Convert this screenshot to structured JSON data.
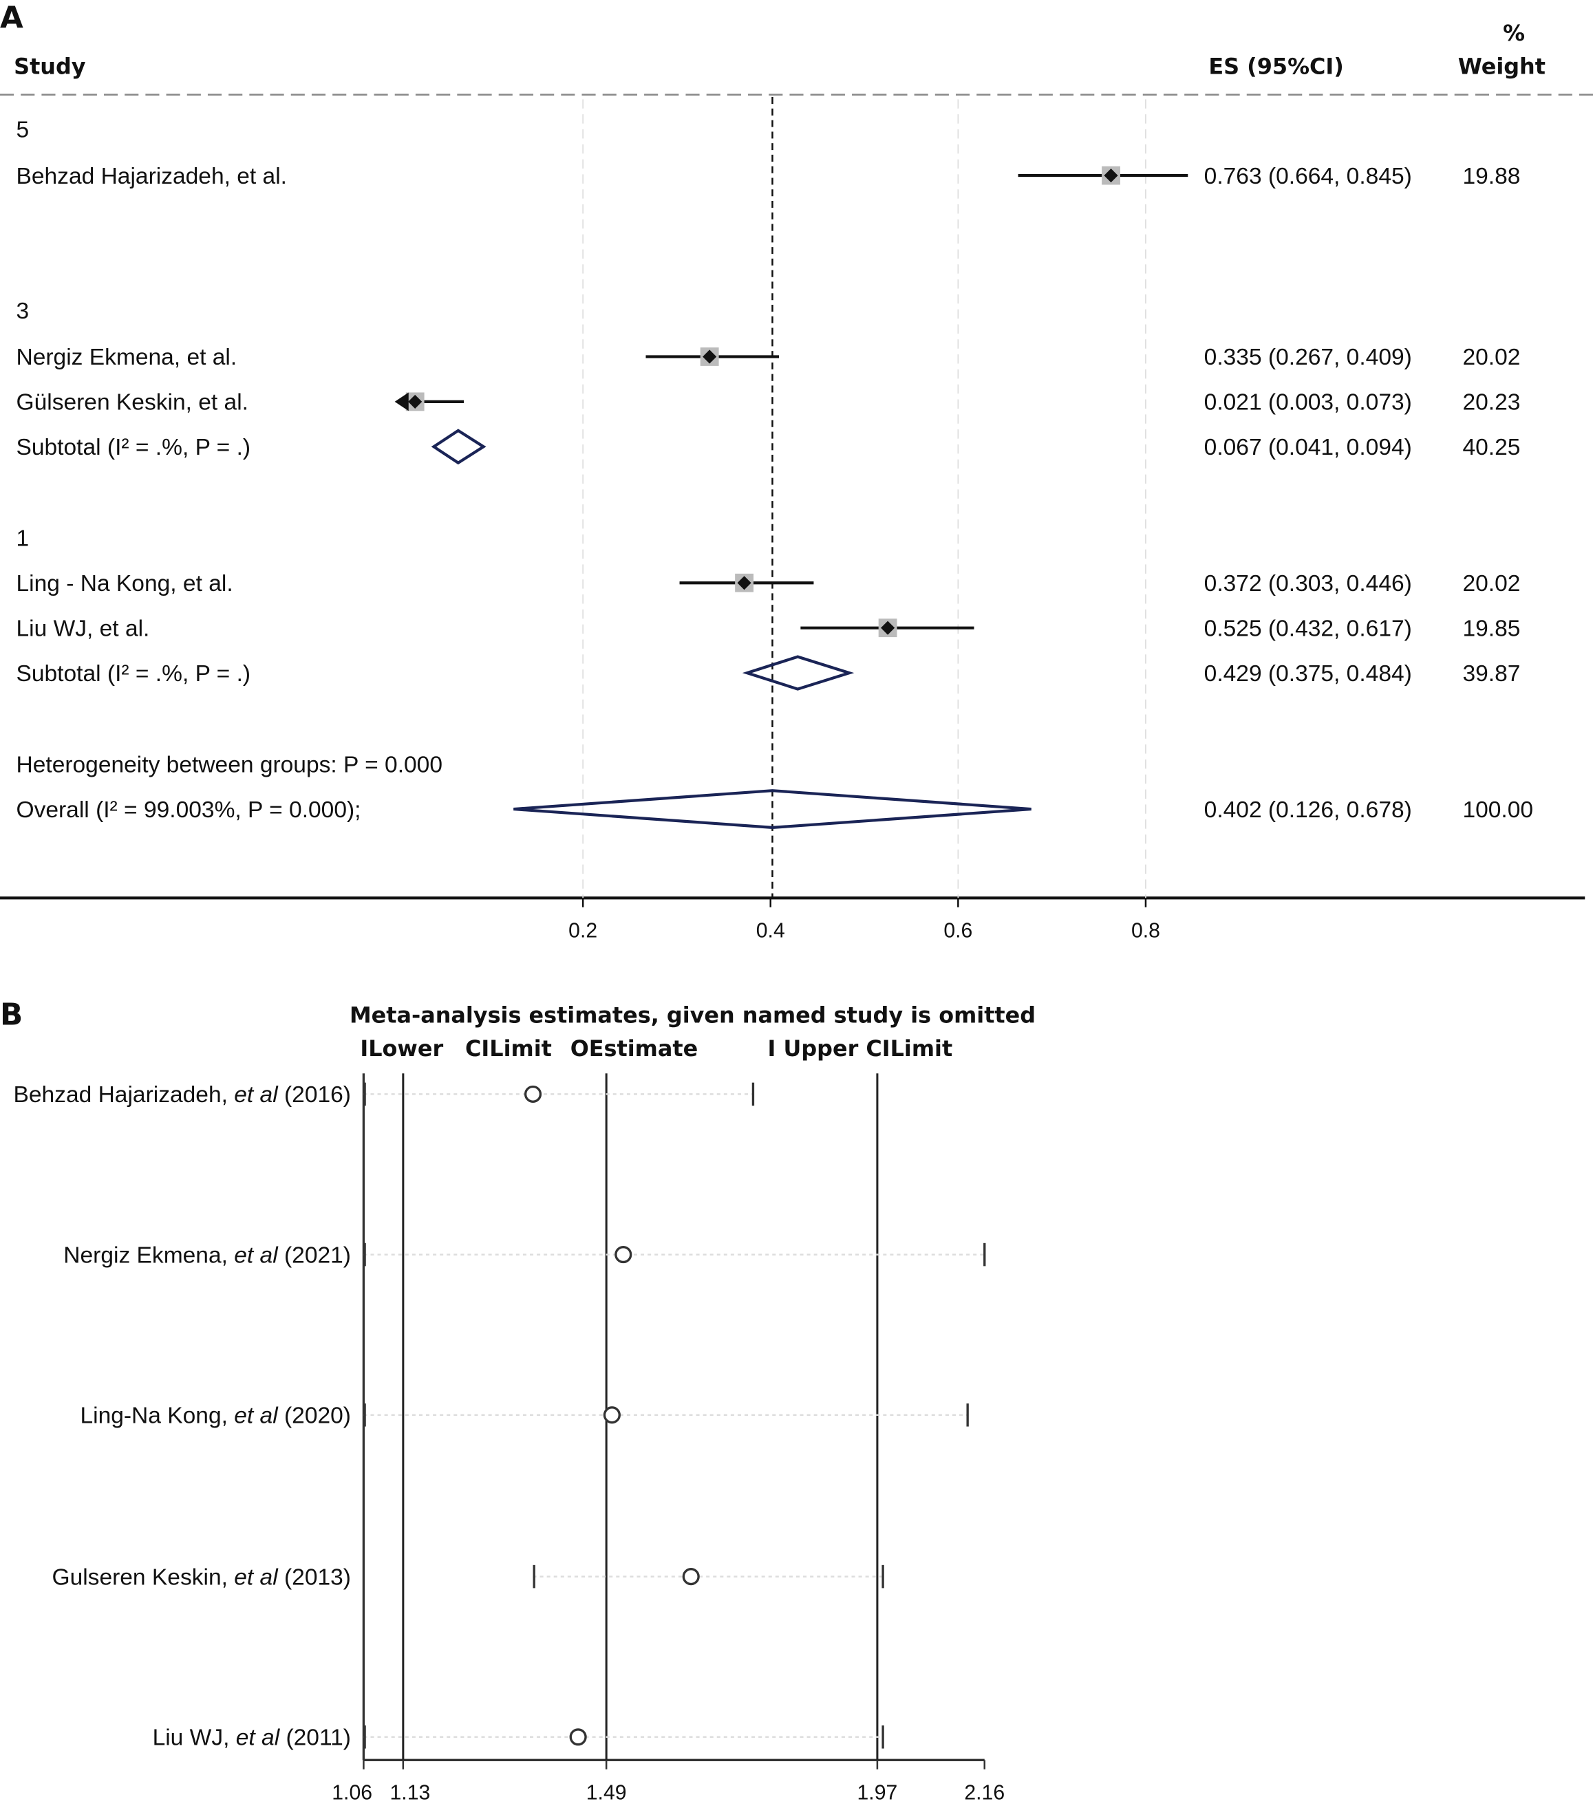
{
  "chart_data": [
    {
      "type": "forest",
      "panel_label": "A",
      "headers": {
        "study": "Study",
        "es": "ES (95%CI)",
        "weight_top": "%",
        "weight": "Weight"
      },
      "xlim": [
        0,
        0.95
      ],
      "xticks": [
        0.2,
        0.4,
        0.6,
        0.8
      ],
      "xtick_labels": [
        "0.2",
        "0.4",
        "0.6",
        "0.8"
      ],
      "reference_line": 0.402,
      "rows": [
        {
          "kind": "group",
          "label": "5"
        },
        {
          "kind": "study",
          "label": "Behzad Hajarizadeh, et al.",
          "es": 0.763,
          "lo": 0.664,
          "hi": 0.845,
          "es_text": "0.763 (0.664, 0.845)",
          "weight": "19.88"
        },
        {
          "kind": "blank"
        },
        {
          "kind": "blank"
        },
        {
          "kind": "group",
          "label": "3"
        },
        {
          "kind": "study",
          "label": "Nergiz Ekmena, et al.",
          "es": 0.335,
          "lo": 0.267,
          "hi": 0.409,
          "es_text": "0.335 (0.267, 0.409)",
          "weight": "20.02"
        },
        {
          "kind": "study",
          "label": "Gülseren Keskin, et al.",
          "es": 0.021,
          "lo": 0.003,
          "hi": 0.073,
          "es_text": "0.021 (0.003, 0.073)",
          "weight": "20.23",
          "clipped_left": true
        },
        {
          "kind": "subtotal",
          "label": "Subtotal  (I² = .%, P = .)",
          "es": 0.067,
          "lo": 0.041,
          "hi": 0.094,
          "es_text": "0.067 (0.041, 0.094)",
          "weight": "40.25"
        },
        {
          "kind": "blank"
        },
        {
          "kind": "group",
          "label": "1"
        },
        {
          "kind": "study",
          "label": "Ling - Na Kong, et al.",
          "es": 0.372,
          "lo": 0.303,
          "hi": 0.446,
          "es_text": "0.372 (0.303, 0.446)",
          "weight": "20.02"
        },
        {
          "kind": "study",
          "label": "Liu WJ, et al.",
          "es": 0.525,
          "lo": 0.432,
          "hi": 0.617,
          "es_text": "0.525 (0.432, 0.617)",
          "weight": "19.85"
        },
        {
          "kind": "subtotal",
          "label": "Subtotal  (I² = .%, P = .)",
          "es": 0.429,
          "lo": 0.375,
          "hi": 0.484,
          "es_text": "0.429 (0.375, 0.484)",
          "weight": "39.87"
        },
        {
          "kind": "blank"
        },
        {
          "kind": "text",
          "label": "Heterogeneity between groups: P = 0.000"
        },
        {
          "kind": "overall",
          "label": "Overall  (I² = 99.003%, P = 0.000);",
          "es": 0.402,
          "lo": 0.126,
          "hi": 0.678,
          "es_text": "0.402 (0.126, 0.678)",
          "weight": "100.00"
        }
      ],
      "colors": {
        "diamond": "#1a2456",
        "box": "#bbbbbb",
        "grid": "#dddddd"
      }
    },
    {
      "type": "sensitivity",
      "panel_label": "B",
      "title": "Meta-analysis estimates, given named study is omitted",
      "legend": [
        "ILower",
        "CILimit",
        "OEstimate",
        "I Upper CILimit"
      ],
      "xlim": [
        1.06,
        2.16
      ],
      "xticks": [
        1.06,
        1.13,
        1.49,
        1.97,
        2.16
      ],
      "xtick_labels": [
        "1.06",
        "1.13",
        "1.49",
        "1.97",
        "2.16"
      ],
      "reference_lines": [
        1.13,
        1.49,
        1.97
      ],
      "studies": [
        {
          "name": "Behzad Hajarizadeh, ",
          "etal": "et al",
          "year": " (2016)",
          "lower": 1.06,
          "estimate": 1.36,
          "upper": 1.75
        },
        {
          "name": "Nergiz Ekmena, ",
          "etal": "et al",
          "year": " (2021)",
          "lower": 1.06,
          "estimate": 1.52,
          "upper": 2.16
        },
        {
          "name": "Ling-Na Kong, ",
          "etal": "et al",
          "year": " (2020)",
          "lower": 1.06,
          "estimate": 1.5,
          "upper": 2.13
        },
        {
          "name": "Gulseren Keskin, ",
          "etal": "et al",
          "year": " (2013)",
          "lower": 1.36,
          "estimate": 1.64,
          "upper": 1.98
        },
        {
          "name": "Liu WJ, ",
          "etal": "et al",
          "year": " (2011)",
          "lower": 1.06,
          "estimate": 1.44,
          "upper": 1.98
        }
      ]
    }
  ]
}
